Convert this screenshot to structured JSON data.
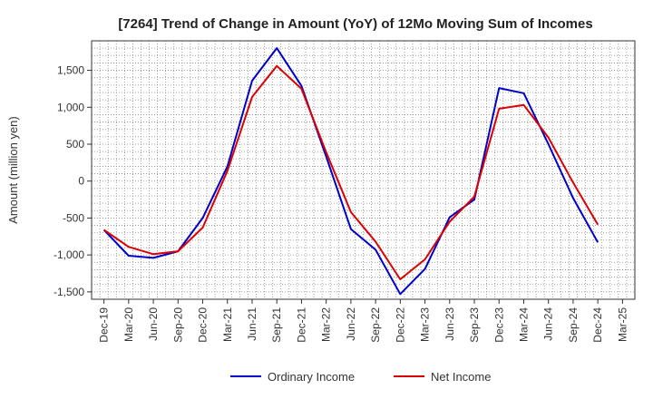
{
  "chart_data": {
    "type": "line",
    "title": "[7264]  Trend of Change in Amount (YoY) of 12Mo Moving Sum of Incomes",
    "xlabel": "",
    "ylabel": "Amount (million yen)",
    "x_tick_labels": [
      "Dec-19",
      "Mar-20",
      "Jun-20",
      "Sep-20",
      "Dec-20",
      "Mar-21",
      "Jun-21",
      "Sep-21",
      "Dec-21",
      "Mar-22",
      "Jun-22",
      "Sep-22",
      "Dec-22",
      "Mar-23",
      "Jun-23",
      "Sep-23",
      "Dec-23",
      "Mar-24",
      "Jun-24",
      "Sep-24",
      "Dec-24",
      "Mar-25"
    ],
    "y_ticks": [
      -1500,
      -1000,
      -500,
      0,
      500,
      1000,
      1500
    ],
    "y_tick_labels": [
      "-1,500",
      "-1,000",
      "-500",
      "0",
      "500",
      "1,000",
      "1,500"
    ],
    "ylim": [
      -1600,
      1900
    ],
    "grid": true,
    "legend_position": "bottom",
    "series": [
      {
        "name": "Ordinary Income",
        "color": "#0000cc",
        "values": [
          -660,
          -1010,
          -1040,
          -950,
          -500,
          200,
          1360,
          1800,
          1290,
          330,
          -650,
          -930,
          -1530,
          -1190,
          -490,
          -250,
          1260,
          1190,
          500,
          -230,
          -830,
          null
        ]
      },
      {
        "name": "Net Income",
        "color": "#dd0000",
        "values": [
          -660,
          -890,
          -990,
          -950,
          -630,
          140,
          1140,
          1560,
          1250,
          390,
          -420,
          -820,
          -1330,
          -1060,
          -550,
          -210,
          980,
          1030,
          590,
          -20,
          -590,
          null
        ]
      }
    ]
  }
}
